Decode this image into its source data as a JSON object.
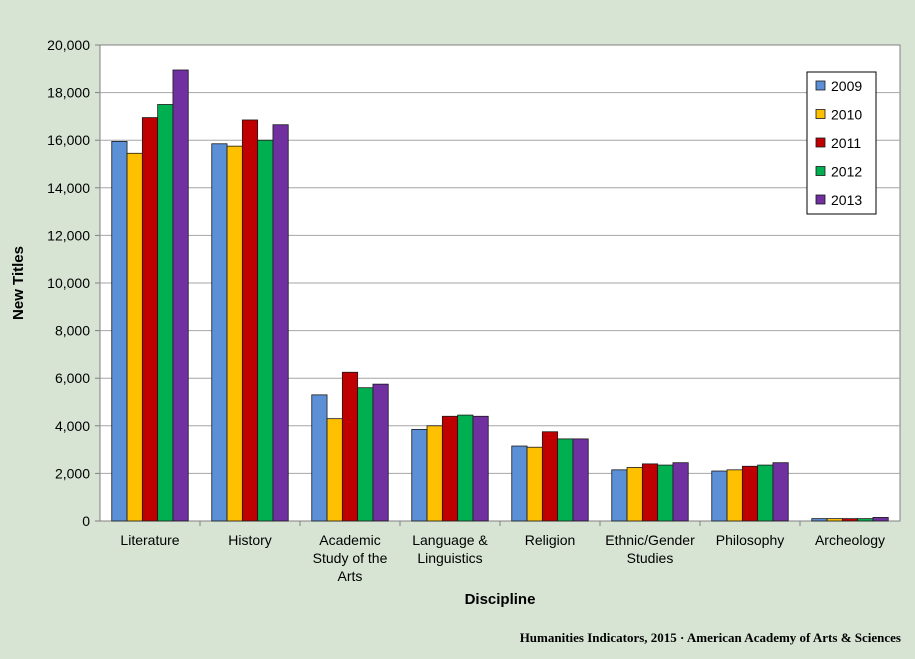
{
  "chart_data": {
    "type": "bar",
    "xlabel": "Discipline",
    "ylabel": "New Titles",
    "ylim": [
      0,
      20000
    ],
    "yticks": [
      "0",
      "2,000",
      "4,000",
      "6,000",
      "8,000",
      "10,000",
      "12,000",
      "14,000",
      "16,000",
      "18,000",
      "20,000"
    ],
    "grid": true,
    "legend_position": "top-right",
    "categories": [
      [
        "Literature"
      ],
      [
        "History"
      ],
      [
        "Academic",
        "Study of the",
        "Arts"
      ],
      [
        "Language &",
        "Linguistics"
      ],
      [
        "Religion"
      ],
      [
        "Ethnic/Gender",
        "Studies"
      ],
      [
        "Philosophy"
      ],
      [
        "Archeology"
      ]
    ],
    "series": [
      {
        "name": "2009",
        "color": "#5b8fd6",
        "values": [
          15950,
          15850,
          5300,
          3850,
          3150,
          2150,
          2100,
          100
        ]
      },
      {
        "name": "2010",
        "color": "#ffc000",
        "values": [
          15450,
          15750,
          4300,
          4000,
          3100,
          2250,
          2150,
          100
        ]
      },
      {
        "name": "2011",
        "color": "#c00000",
        "values": [
          16950,
          16850,
          6250,
          4400,
          3750,
          2400,
          2300,
          100
        ]
      },
      {
        "name": "2012",
        "color": "#00b050",
        "values": [
          17500,
          16000,
          5600,
          4450,
          3450,
          2350,
          2350,
          100
        ]
      },
      {
        "name": "2013",
        "color": "#7030a0",
        "values": [
          18950,
          16650,
          5750,
          4400,
          3450,
          2450,
          2450,
          150
        ]
      }
    ]
  },
  "footer": "Humanities Indicators, 2015 · American Academy of Arts & Sciences"
}
